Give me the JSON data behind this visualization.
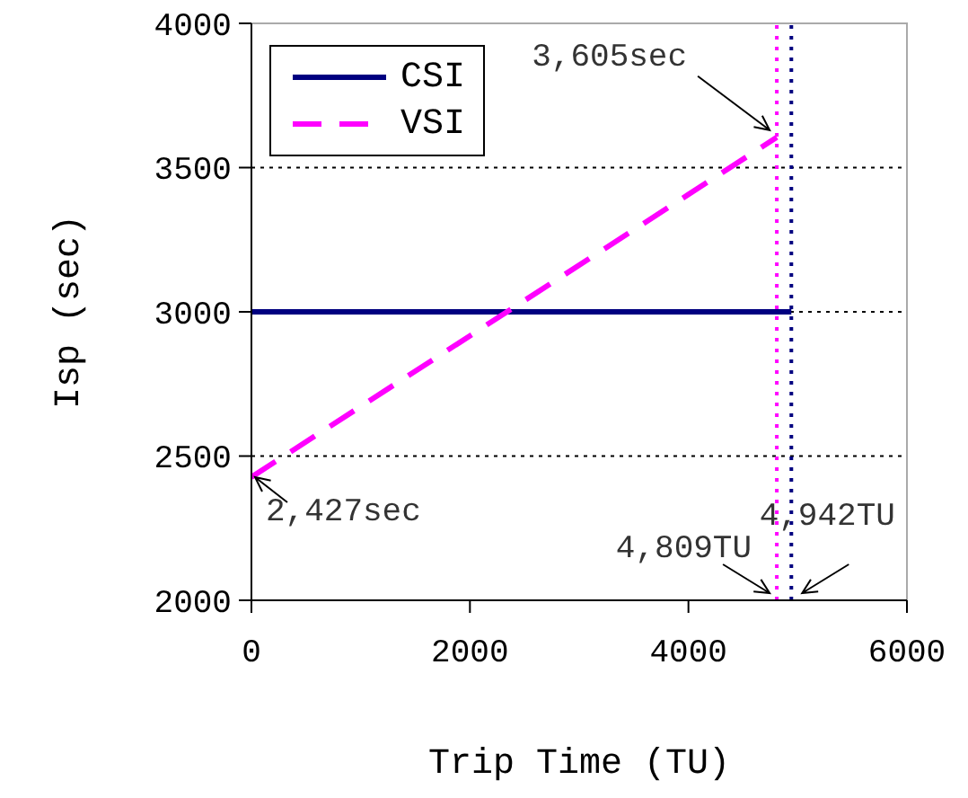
{
  "chart_data": {
    "type": "line",
    "xlabel": "Trip Time (TU)",
    "ylabel": "Isp (sec)",
    "xlim": [
      0,
      6000
    ],
    "xticks": [
      0,
      2000,
      4000,
      6000
    ],
    "ylim": [
      2000,
      4000
    ],
    "yticks": [
      2000,
      2500,
      3000,
      3500,
      4000
    ],
    "grid": "y",
    "legend": "top left",
    "series": [
      {
        "name": "CSI",
        "color": "#000080",
        "line_style": "solid",
        "x": [
          0,
          4942
        ],
        "values": [
          3000,
          3000
        ]
      },
      {
        "name": "VSI",
        "color": "#ff00ff",
        "line_style": "dashed",
        "x": [
          0,
          4809
        ],
        "values": [
          2427,
          3605
        ]
      }
    ],
    "ref_lines": [
      {
        "axis": "x",
        "value": 4809,
        "color": "#ff00ff",
        "line_style": "dotted"
      },
      {
        "axis": "x",
        "value": 4942,
        "color": "#000080",
        "line_style": "dotted"
      }
    ],
    "annotations": [
      {
        "text": "3,605sec",
        "x": 4809,
        "y": 3605
      },
      {
        "text": "2,427sec",
        "x": 0,
        "y": 2427
      },
      {
        "text": "4,809TU",
        "x": 4809,
        "y": 2000
      },
      {
        "text": "4,942TU",
        "x": 4942,
        "y": 2000
      }
    ]
  }
}
